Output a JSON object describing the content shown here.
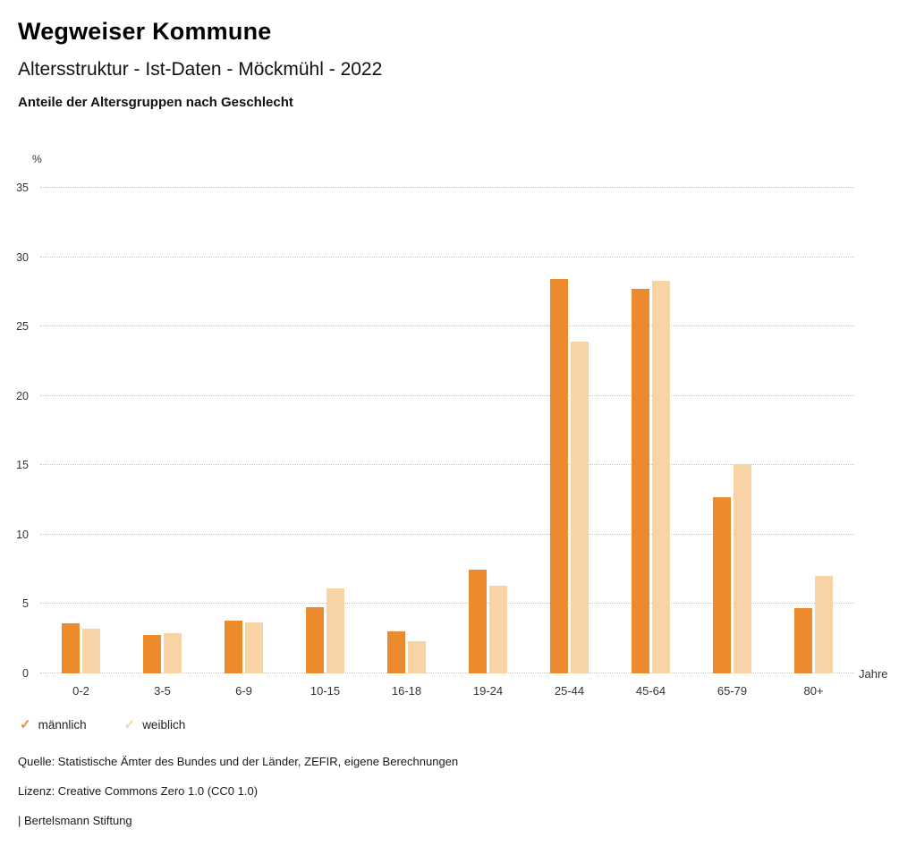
{
  "header": {
    "title": "Wegweiser Kommune",
    "subtitle": "Altersstruktur - Ist-Daten - Möckmühl - 2022",
    "chart_heading": "Anteile der Altersgruppen nach Geschlecht"
  },
  "chart_data": {
    "type": "bar",
    "title": "Anteile der Altersgruppen nach Geschlecht",
    "categories": [
      "0-2",
      "3-5",
      "6-9",
      "10-15",
      "16-18",
      "19-24",
      "25-44",
      "45-64",
      "65-79",
      "80+"
    ],
    "series": [
      {
        "name": "männlich",
        "color": "#EB8B2D",
        "values": [
          3.6,
          2.8,
          3.8,
          4.8,
          3.0,
          7.5,
          28.4,
          27.7,
          12.7,
          4.7
        ]
      },
      {
        "name": "weiblich",
        "color": "#F8D3A5",
        "values": [
          3.2,
          2.9,
          3.7,
          6.1,
          2.3,
          6.3,
          23.9,
          28.3,
          15.1,
          7.0
        ]
      }
    ],
    "ylabel": "%",
    "xlabel": "Jahre",
    "ylim": [
      0,
      35
    ],
    "ytick_interval": 5,
    "grid": true,
    "legend_position": "bottom",
    "legend_marker": "✓"
  },
  "footer": {
    "source": "Quelle: Statistische Ämter des Bundes und der Länder, ZEFIR, eigene Berechnungen",
    "license": "Lizenz: Creative Commons Zero 1.0 (CC0 1.0)",
    "attribution": "| Bertelsmann Stiftung"
  }
}
